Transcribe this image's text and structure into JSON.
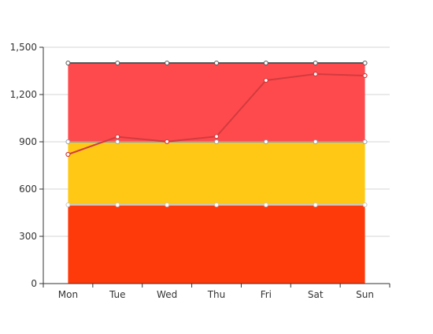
{
  "chart_data": {
    "type": "area",
    "categories": [
      "Mon",
      "Tue",
      "Wed",
      "Thu",
      "Fri",
      "Sat",
      "Sun"
    ],
    "ylim": [
      0,
      1500
    ],
    "yticks": [
      0,
      300,
      600,
      900,
      1200,
      1500
    ],
    "ytick_labels": [
      "0",
      "300",
      "600",
      "900",
      "1,200",
      "1,500"
    ],
    "grid": true,
    "stacked_bands": [
      {
        "values": [
          500,
          500,
          500,
          500,
          500,
          500,
          500
        ],
        "color": "#ff3a0a",
        "edge": "#c8c8c8"
      },
      {
        "values": [
          900,
          900,
          900,
          900,
          900,
          900,
          900
        ],
        "color": "#ffc814",
        "edge": "#8f9db0"
      },
      {
        "values": [
          1400,
          1400,
          1400,
          1400,
          1400,
          1400,
          1400
        ],
        "color": "#ff4a4d",
        "edge": "#555555"
      }
    ],
    "line_series": {
      "values": [
        820,
        932,
        901,
        934,
        1290,
        1330,
        1320
      ],
      "color": "#d23b3f"
    }
  }
}
